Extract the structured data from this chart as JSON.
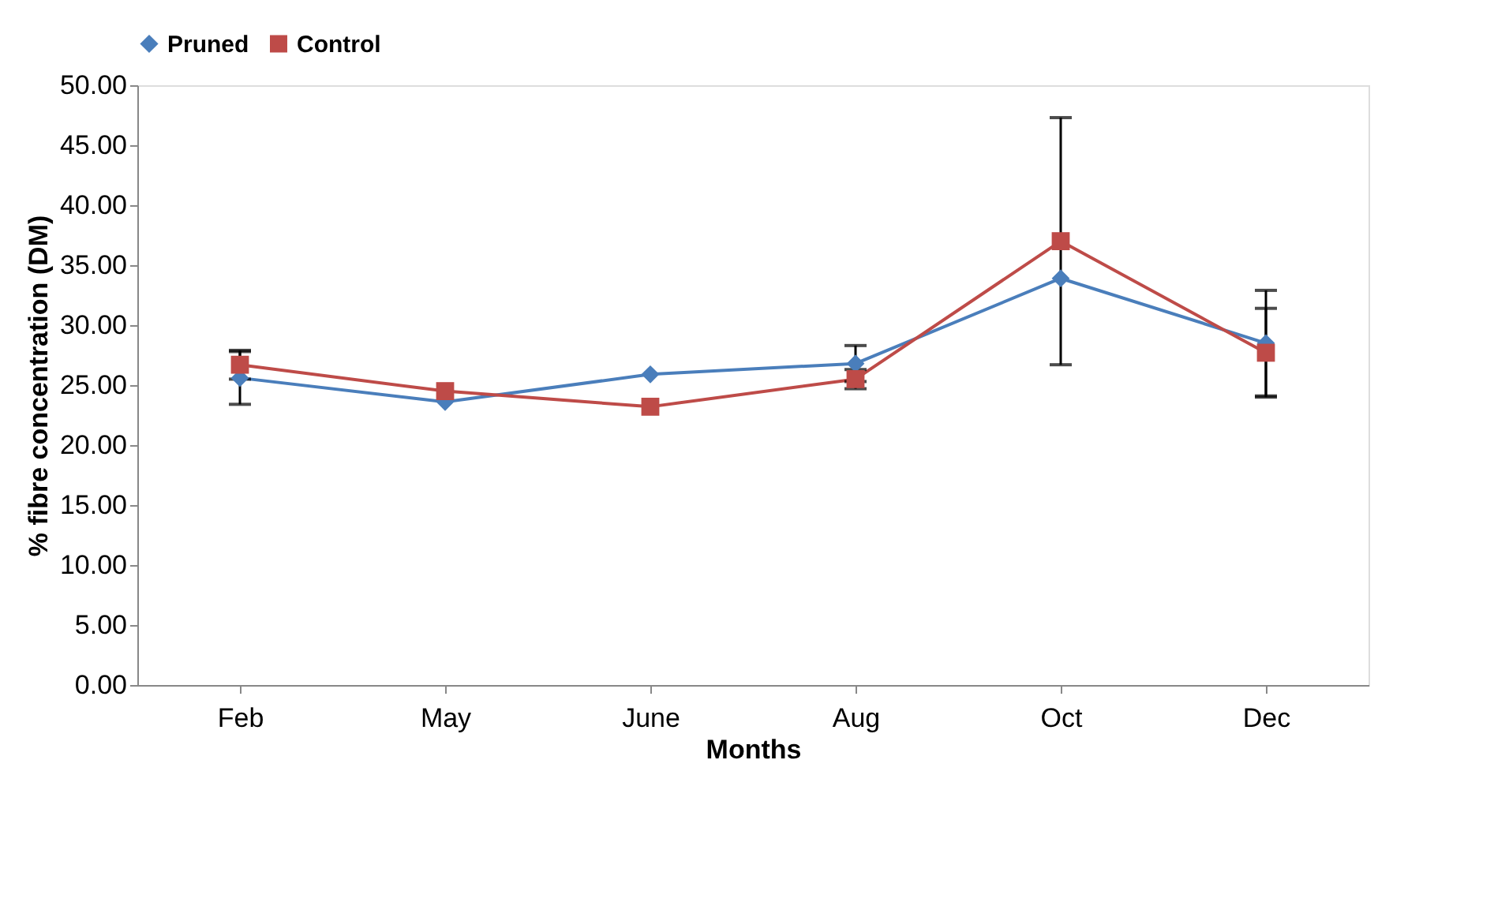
{
  "chart_data": {
    "type": "line",
    "xlabel": "Months",
    "ylabel": "% fibre concentration (DM)",
    "categories": [
      "Feb",
      "May",
      "June",
      "Aug",
      "Oct",
      "Dec"
    ],
    "series": [
      {
        "name": "Pruned",
        "color": "#4a7ebb",
        "marker": "diamond",
        "values": [
          25.6,
          23.6,
          25.9,
          26.8,
          33.9,
          28.5
        ],
        "errors": [
          2.2,
          null,
          null,
          1.5,
          null,
          4.4
        ]
      },
      {
        "name": "Control",
        "color": "#be4b48",
        "marker": "square",
        "values": [
          26.7,
          24.5,
          23.2,
          25.5,
          37.0,
          27.7
        ],
        "errors": [
          1.2,
          null,
          null,
          0.8,
          10.3,
          3.7
        ]
      }
    ],
    "ylim": [
      0,
      50
    ],
    "yticks": [
      {
        "value": 0,
        "label": "0.00"
      },
      {
        "value": 5,
        "label": "5.00"
      },
      {
        "value": 10,
        "label": "10.00"
      },
      {
        "value": 15,
        "label": "15.00"
      },
      {
        "value": 20,
        "label": "20.00"
      },
      {
        "value": 25,
        "label": "25.00"
      },
      {
        "value": 30,
        "label": "30.00"
      },
      {
        "value": 35,
        "label": "35.00"
      },
      {
        "value": 40,
        "label": "40.00"
      },
      {
        "value": 45,
        "label": "45.00"
      },
      {
        "value": 50,
        "label": "50.00"
      }
    ],
    "legend": "top",
    "grid": false
  }
}
